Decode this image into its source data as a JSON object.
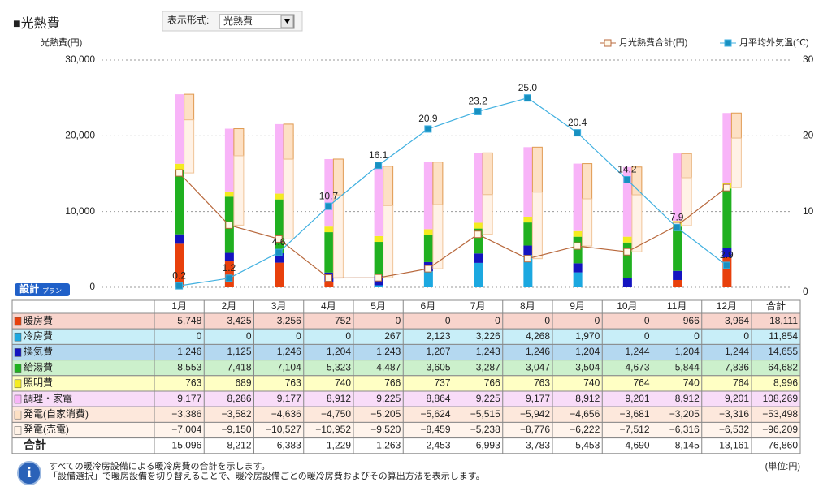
{
  "chart_data": {
    "type": "bar",
    "title": "■光熱費",
    "display_format_label": "表示形式:",
    "display_format_value": "光熱費",
    "y_axis_title": "光熱費(円)",
    "plan_badge": "設計",
    "plan_badge_sub": "プラン",
    "categories": [
      "1月",
      "2月",
      "3月",
      "4月",
      "5月",
      "6月",
      "7月",
      "8月",
      "9月",
      "10月",
      "11月",
      "12月"
    ],
    "ylim": [
      0,
      30000
    ],
    "yticks": [
      0,
      {
        "value": 10000,
        "label": "10,000"
      },
      {
        "value": 20000,
        "label": "20,000"
      },
      {
        "value": 30000,
        "label": "30,000"
      }
    ],
    "y2lim": [
      0,
      30
    ],
    "y2ticks": [
      0,
      10,
      20,
      30
    ],
    "grid": true,
    "total_header": "合計",
    "total_row_label": "合計",
    "series": [
      {
        "name": "暖房費",
        "type": "bar",
        "color": "#e8400c",
        "background": "#f8d4cc",
        "values": [
          5748,
          3425,
          3256,
          752,
          0,
          0,
          0,
          0,
          0,
          0,
          966,
          3964
        ],
        "value_labels": [
          "5,748",
          "3,425",
          "3,256",
          "752",
          "0",
          "0",
          "0",
          "0",
          "0",
          "0",
          "966",
          "3,964"
        ],
        "total": {
          "value": 18111,
          "label": "18,111"
        }
      },
      {
        "name": "冷房費",
        "type": "bar",
        "color": "#1ca8e0",
        "background": "#c8eef8",
        "values": [
          0,
          0,
          0,
          0,
          267,
          2123,
          3226,
          4268,
          1970,
          0,
          0,
          0
        ],
        "value_labels": [
          "0",
          "0",
          "0",
          "0",
          "267",
          "2,123",
          "3,226",
          "4,268",
          "1,970",
          "0",
          "0",
          "0"
        ],
        "total": {
          "value": 11854,
          "label": "11,854"
        }
      },
      {
        "name": "換気費",
        "type": "bar",
        "color": "#1414c0",
        "background": "#b4d8f0",
        "values": [
          1246,
          1125,
          1246,
          1204,
          1243,
          1207,
          1243,
          1246,
          1204,
          1244,
          1204,
          1244
        ],
        "value_labels": [
          "1,246",
          "1,125",
          "1,246",
          "1,204",
          "1,243",
          "1,207",
          "1,243",
          "1,246",
          "1,204",
          "1,244",
          "1,204",
          "1,244"
        ],
        "total": {
          "value": 14655,
          "label": "14,655"
        }
      },
      {
        "name": "給湯費",
        "type": "bar",
        "color": "#20b020",
        "background": "#ccf0cc",
        "values": [
          8553,
          7418,
          7104,
          5323,
          4487,
          3605,
          3287,
          3047,
          3504,
          4673,
          5844,
          7836
        ],
        "value_labels": [
          "8,553",
          "7,418",
          "7,104",
          "5,323",
          "4,487",
          "3,605",
          "3,287",
          "3,047",
          "3,504",
          "4,673",
          "5,844",
          "7,836"
        ],
        "total": {
          "value": 64682,
          "label": "64,682"
        }
      },
      {
        "name": "照明費",
        "type": "bar",
        "color": "#f4ec20",
        "background": "#ffffc4",
        "values": [
          763,
          689,
          763,
          740,
          766,
          737,
          766,
          763,
          740,
          764,
          740,
          764
        ],
        "value_labels": [
          "763",
          "689",
          "763",
          "740",
          "766",
          "737",
          "766",
          "763",
          "740",
          "764",
          "740",
          "764"
        ],
        "total": {
          "value": 8996,
          "label": "8,996"
        }
      },
      {
        "name": "調理・家電",
        "type": "bar",
        "color": "#f8b4f8",
        "background": "#f8dcf8",
        "values": [
          9177,
          8286,
          9177,
          8912,
          9225,
          8864,
          9225,
          9177,
          8912,
          9201,
          8912,
          9201
        ],
        "value_labels": [
          "9,177",
          "8,286",
          "9,177",
          "8,912",
          "9,225",
          "8,864",
          "9,225",
          "9,177",
          "8,912",
          "9,201",
          "8,912",
          "9,201"
        ],
        "total": {
          "value": 108269,
          "label": "108,269"
        }
      },
      {
        "name": "発電(自家消費)",
        "type": "bar",
        "color": "#fde0c4",
        "stroke": "#e09a50",
        "background": "#fde8dc",
        "values": [
          -3386,
          -3582,
          -4636,
          -4750,
          -5205,
          -5624,
          -5515,
          -5942,
          -4656,
          -3681,
          -3205,
          -3316
        ],
        "value_labels": [
          "−3,386",
          "−3,582",
          "−4,636",
          "−4,750",
          "−5,205",
          "−5,624",
          "−5,515",
          "−5,942",
          "−4,656",
          "−3,681",
          "−3,205",
          "−3,316"
        ],
        "total": {
          "value": -53498,
          "label": "−53,498"
        }
      },
      {
        "name": "発電(売電)",
        "type": "bar",
        "color": "#fff2e6",
        "stroke": "#f0c498",
        "background": "#fff4ec",
        "values": [
          -7004,
          -9150,
          -10527,
          -10952,
          -9520,
          -8459,
          -5238,
          -8776,
          -6222,
          -7512,
          -6316,
          -6532
        ],
        "value_labels": [
          "−7,004",
          "−9,150",
          "−10,527",
          "−10,952",
          "−9,520",
          "−8,459",
          "−5,238",
          "−8,776",
          "−6,222",
          "−7,512",
          "−6,316",
          "−6,532"
        ],
        "total": {
          "value": -96209,
          "label": "−96,209"
        }
      },
      {
        "name": "月光熱費合計(円)",
        "type": "line",
        "color": "#b8683c",
        "marker_fill": "#fff8e8",
        "values": [
          15096,
          8212,
          6383,
          1229,
          1263,
          2453,
          6993,
          3783,
          5453,
          4690,
          8145,
          13161
        ],
        "value_labels": [
          "15,096",
          "8,212",
          "6,383",
          "1,229",
          "1,263",
          "2,453",
          "6,993",
          "3,783",
          "5,453",
          "4,690",
          "8,145",
          "13,161"
        ],
        "total": {
          "value": 76860,
          "label": "76,860"
        }
      },
      {
        "name": "月平均外気温(℃)",
        "type": "line",
        "axis": "y2",
        "color": "#40b0e0",
        "marker_fill": "#1890c0",
        "data_labels": true,
        "values": [
          0.2,
          1.2,
          4.6,
          10.7,
          16.1,
          20.9,
          23.2,
          25.0,
          20.4,
          14.2,
          7.9,
          2.9
        ],
        "value_labels": [
          "0.2",
          "1.2",
          "4.6",
          "10.7",
          "16.1",
          "20.9",
          "23.2",
          "25.0",
          "20.4",
          "14.2",
          "7.9",
          "2.9"
        ]
      }
    ],
    "notes": [
      "すべての暖冷房設備による暖冷房費の合計を示します。",
      "「設備選択」で暖房設備を切り替えることで、暖冷房設備ごとの暖冷房費およびその算出方法を表示します。"
    ],
    "unit_note": "(単位:円)"
  }
}
